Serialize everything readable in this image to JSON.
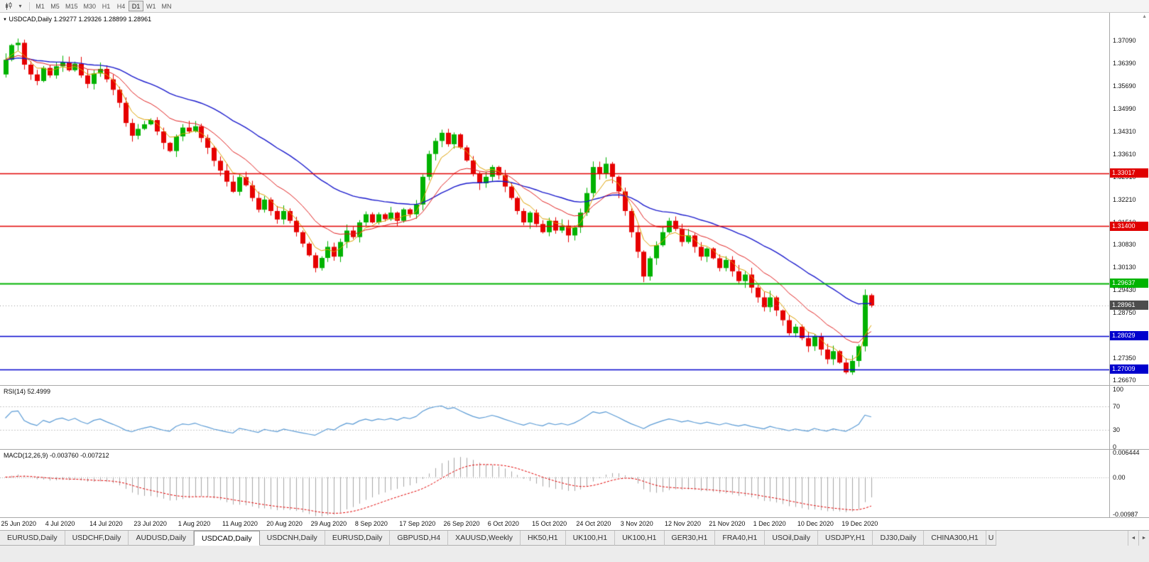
{
  "colors": {
    "up": "#00b200",
    "down": "#e60000",
    "ma_fast": "#dda000",
    "ma_mid": "#e02020",
    "ma_slow": "#1a1acc",
    "rsi": "#5b9bd5",
    "macd_hist": "#a6a6a6",
    "macd_signal": "#e00000"
  },
  "icons": {
    "caret": "▾",
    "title_marker": "▼",
    "up_arrow": "▲",
    "tab_left": "◄",
    "tab_right": "►"
  },
  "toolbar": {
    "timeframes": [
      "M1",
      "M5",
      "M15",
      "M30",
      "H1",
      "H4",
      "D1",
      "W1",
      "MN"
    ],
    "active": "D1"
  },
  "chart": {
    "type": "candlestick",
    "symbol": "USDCAD,Daily",
    "ohlc_text": "1.29277 1.29326 1.28899 1.28961",
    "last": {
      "o": 1.29277,
      "h": 1.29326,
      "l": 1.28899,
      "c": 1.28961
    },
    "price_axis": [
      "1.37090",
      "1.36390",
      "1.35690",
      "1.34990",
      "1.34310",
      "1.33610",
      "1.32910",
      "1.32210",
      "1.31510",
      "1.30830",
      "1.30130",
      "1.29430",
      "1.28750",
      "1.28050",
      "1.27350",
      "1.26670"
    ],
    "hlines": [
      {
        "label": "1.33017",
        "price": 1.33017,
        "color": "#e00000",
        "width": 1.5
      },
      {
        "label": "1.31400",
        "price": 1.314,
        "color": "#e00000",
        "width": 1.5
      },
      {
        "label": "1.29637",
        "price": 1.29637,
        "color": "#00b400",
        "width": 2
      },
      {
        "label": "1.28029",
        "price": 1.28029,
        "color": "#0000cd",
        "width": 1.5
      },
      {
        "label": "1.27009",
        "price": 1.27009,
        "color": "#0000cd",
        "width": 1.5
      }
    ],
    "current_price": {
      "label": "1.28961",
      "price": 1.28961,
      "color": "#4d4d4d"
    },
    "date_ticks": [
      "25 Jun 2020",
      "4 Jul 2020",
      "14 Jul 2020",
      "23 Jul 2020",
      "1 Aug 2020",
      "11 Aug 2020",
      "20 Aug 2020",
      "29 Aug 2020",
      "8 Sep 2020",
      "17 Sep 2020",
      "26 Sep 2020",
      "6 Oct 2020",
      "15 Oct 2020",
      "24 Oct 2020",
      "3 Nov 2020",
      "12 Nov 2020",
      "21 Nov 2020",
      "1 Dec 2020",
      "10 Dec 2020",
      "19 Dec 2020"
    ],
    "closes": [
      1.365,
      1.3695,
      1.3702,
      1.3635,
      1.3605,
      1.3585,
      1.3625,
      1.3602,
      1.363,
      1.3642,
      1.3618,
      1.3638,
      1.3602,
      1.3576,
      1.3608,
      1.3622,
      1.359,
      1.3558,
      1.3518,
      1.3456,
      1.3417,
      1.3438,
      1.3452,
      1.3465,
      1.343,
      1.3395,
      1.337,
      1.3415,
      1.3442,
      1.343,
      1.3446,
      1.341,
      1.338,
      1.334,
      1.331,
      1.3276,
      1.3245,
      1.329,
      1.3265,
      1.3226,
      1.319,
      1.3221,
      1.3186,
      1.316,
      1.3186,
      1.3156,
      1.3121,
      1.3086,
      1.305,
      1.3011,
      1.3042,
      1.3076,
      1.3046,
      1.3091,
      1.3126,
      1.3106,
      1.3151,
      1.3176,
      1.3151,
      1.3176,
      1.3161,
      1.3181,
      1.3156,
      1.3191,
      1.3176,
      1.3206,
      1.3291,
      1.3361,
      1.3401,
      1.3426,
      1.3391,
      1.3421,
      1.3381,
      1.3341,
      1.3301,
      1.3271,
      1.3291,
      1.3321,
      1.3296,
      1.3261,
      1.3226,
      1.3186,
      1.3151,
      1.3181,
      1.3146,
      1.3121,
      1.3156,
      1.3126,
      1.3141,
      1.3111,
      1.3136,
      1.3181,
      1.3241,
      1.3321,
      1.3301,
      1.3331,
      1.3291,
      1.3246,
      1.3186,
      1.3121,
      1.3061,
      1.2985,
      1.3041,
      1.3081,
      1.3121,
      1.3156,
      1.3131,
      1.3091,
      1.3111,
      1.3076,
      1.3046,
      1.3071,
      1.3041,
      1.3011,
      1.3036,
      1.3001,
      1.2971,
      1.2991,
      1.2951,
      1.2921,
      1.2891,
      1.2921,
      1.2881,
      1.2851,
      1.2811,
      1.2831,
      1.2796,
      1.2771,
      1.2801,
      1.2761,
      1.2731,
      1.2756,
      1.2721,
      1.2691,
      1.2726,
      1.2771,
      1.2928,
      1.28961
    ]
  },
  "rsi": {
    "label": "RSI(14)",
    "value": "52.4999",
    "axis": [
      "100",
      "70",
      "30",
      "0"
    ],
    "levels": [
      70,
      30
    ]
  },
  "macd": {
    "label": "MACD(12,26,9)",
    "values": "-0.003760 -0.007212",
    "axis": [
      "0.006444",
      "0.00",
      "-0.00987"
    ]
  },
  "tabs": {
    "items": [
      "EURUSD,Daily",
      "USDCHF,Daily",
      "AUDUSD,Daily",
      "USDCAD,Daily",
      "USDCNH,Daily",
      "EURUSD,Daily",
      "GBPUSD,H4",
      "XAUUSD,Weekly",
      "HK50,H1",
      "UK100,H1",
      "UK100,H1",
      "GER30,H1",
      "FRA40,H1",
      "USOil,Daily",
      "USDJPY,H1",
      "DJ30,Daily",
      "CHINA300,H1"
    ],
    "active_index": 3,
    "partial": "U"
  }
}
